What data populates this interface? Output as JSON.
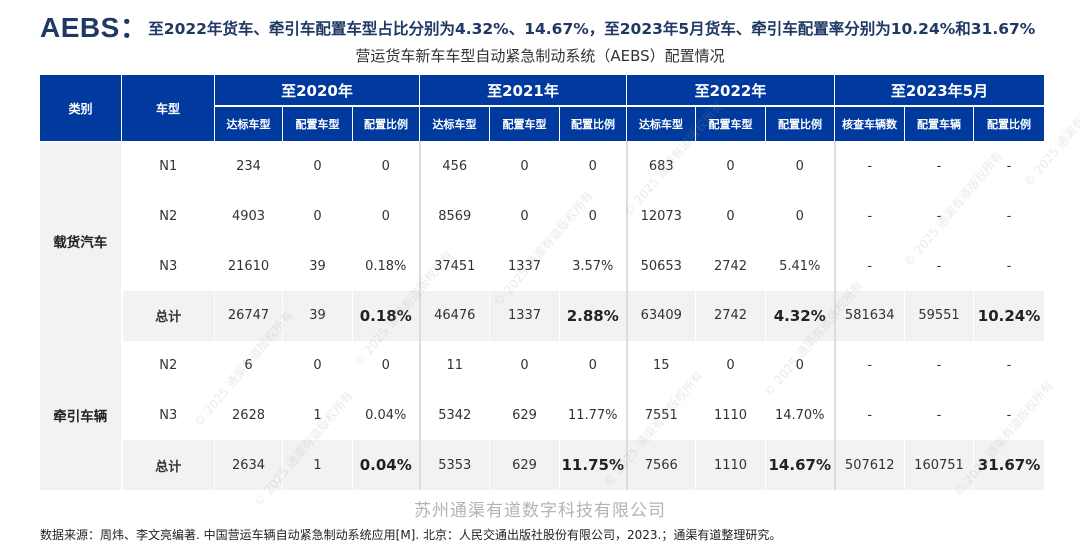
{
  "headline": {
    "lead": "AEBS：",
    "rest": "至2022年货车、牵引车配置车型占比分别为4.32%、14.67%，至2023年5月货车、牵引车配置率分别为10.24%和31.67%"
  },
  "subtitle": "营运货车新车车型自动紧急制动系统（AEBS）配置情况",
  "table": {
    "header_category": "类别",
    "header_model": "车型",
    "years": [
      "至2020年",
      "至2021年",
      "至2022年",
      "至2023年5月"
    ],
    "sub_headers": [
      "达标车型",
      "配置车型",
      "配置比例",
      "达标车型",
      "配置车型",
      "配置比例",
      "达标车型",
      "配置车型",
      "配置比例",
      "核查车辆数",
      "配置车辆",
      "配置比例"
    ],
    "groups": [
      {
        "category": "载货汽车",
        "rows": [
          {
            "model": "N1",
            "cells": [
              "234",
              "0",
              "0",
              "456",
              "0",
              "0",
              "683",
              "0",
              "0",
              "-",
              "-",
              "-"
            ]
          },
          {
            "model": "N2",
            "cells": [
              "4903",
              "0",
              "0",
              "8569",
              "0",
              "0",
              "12073",
              "0",
              "0",
              "-",
              "-",
              "-"
            ]
          },
          {
            "model": "N3",
            "cells": [
              "21610",
              "39",
              "0.18%",
              "37451",
              "1337",
              "3.57%",
              "50653",
              "2742",
              "5.41%",
              "-",
              "-",
              "-"
            ]
          },
          {
            "model": "总计",
            "total": true,
            "cells": [
              "26747",
              "39",
              "0.18%",
              "46476",
              "1337",
              "2.88%",
              "63409",
              "2742",
              "4.32%",
              "581634",
              "59551",
              "10.24%"
            ]
          }
        ]
      },
      {
        "category": "牵引车辆",
        "rows": [
          {
            "model": "N2",
            "cells": [
              "6",
              "0",
              "0",
              "11",
              "0",
              "0",
              "15",
              "0",
              "0",
              "-",
              "-",
              "-"
            ]
          },
          {
            "model": "N3",
            "cells": [
              "2628",
              "1",
              "0.04%",
              "5342",
              "629",
              "11.77%",
              "7551",
              "1110",
              "14.70%",
              "-",
              "-",
              "-"
            ]
          },
          {
            "model": "总计",
            "total": true,
            "cells": [
              "2634",
              "1",
              "0.04%",
              "5353",
              "629",
              "11.75%",
              "7566",
              "1110",
              "14.67%",
              "507612",
              "160751",
              "31.67%"
            ]
          }
        ]
      }
    ]
  },
  "watermark_text": "© 2025 通渠有道版权所有",
  "company": "苏州通渠有道数字科技有限公司",
  "source": "数据来源：周炜、李文亮编著. 中国营运车辆自动紧急制动系统应用[M]. 北京：人民交通出版社股份有限公司，2023.；通渠有道整理研究。",
  "colors": {
    "header_bg": "#003a9e",
    "headline": "#1f3864",
    "stripe": "#f2f2f2"
  }
}
